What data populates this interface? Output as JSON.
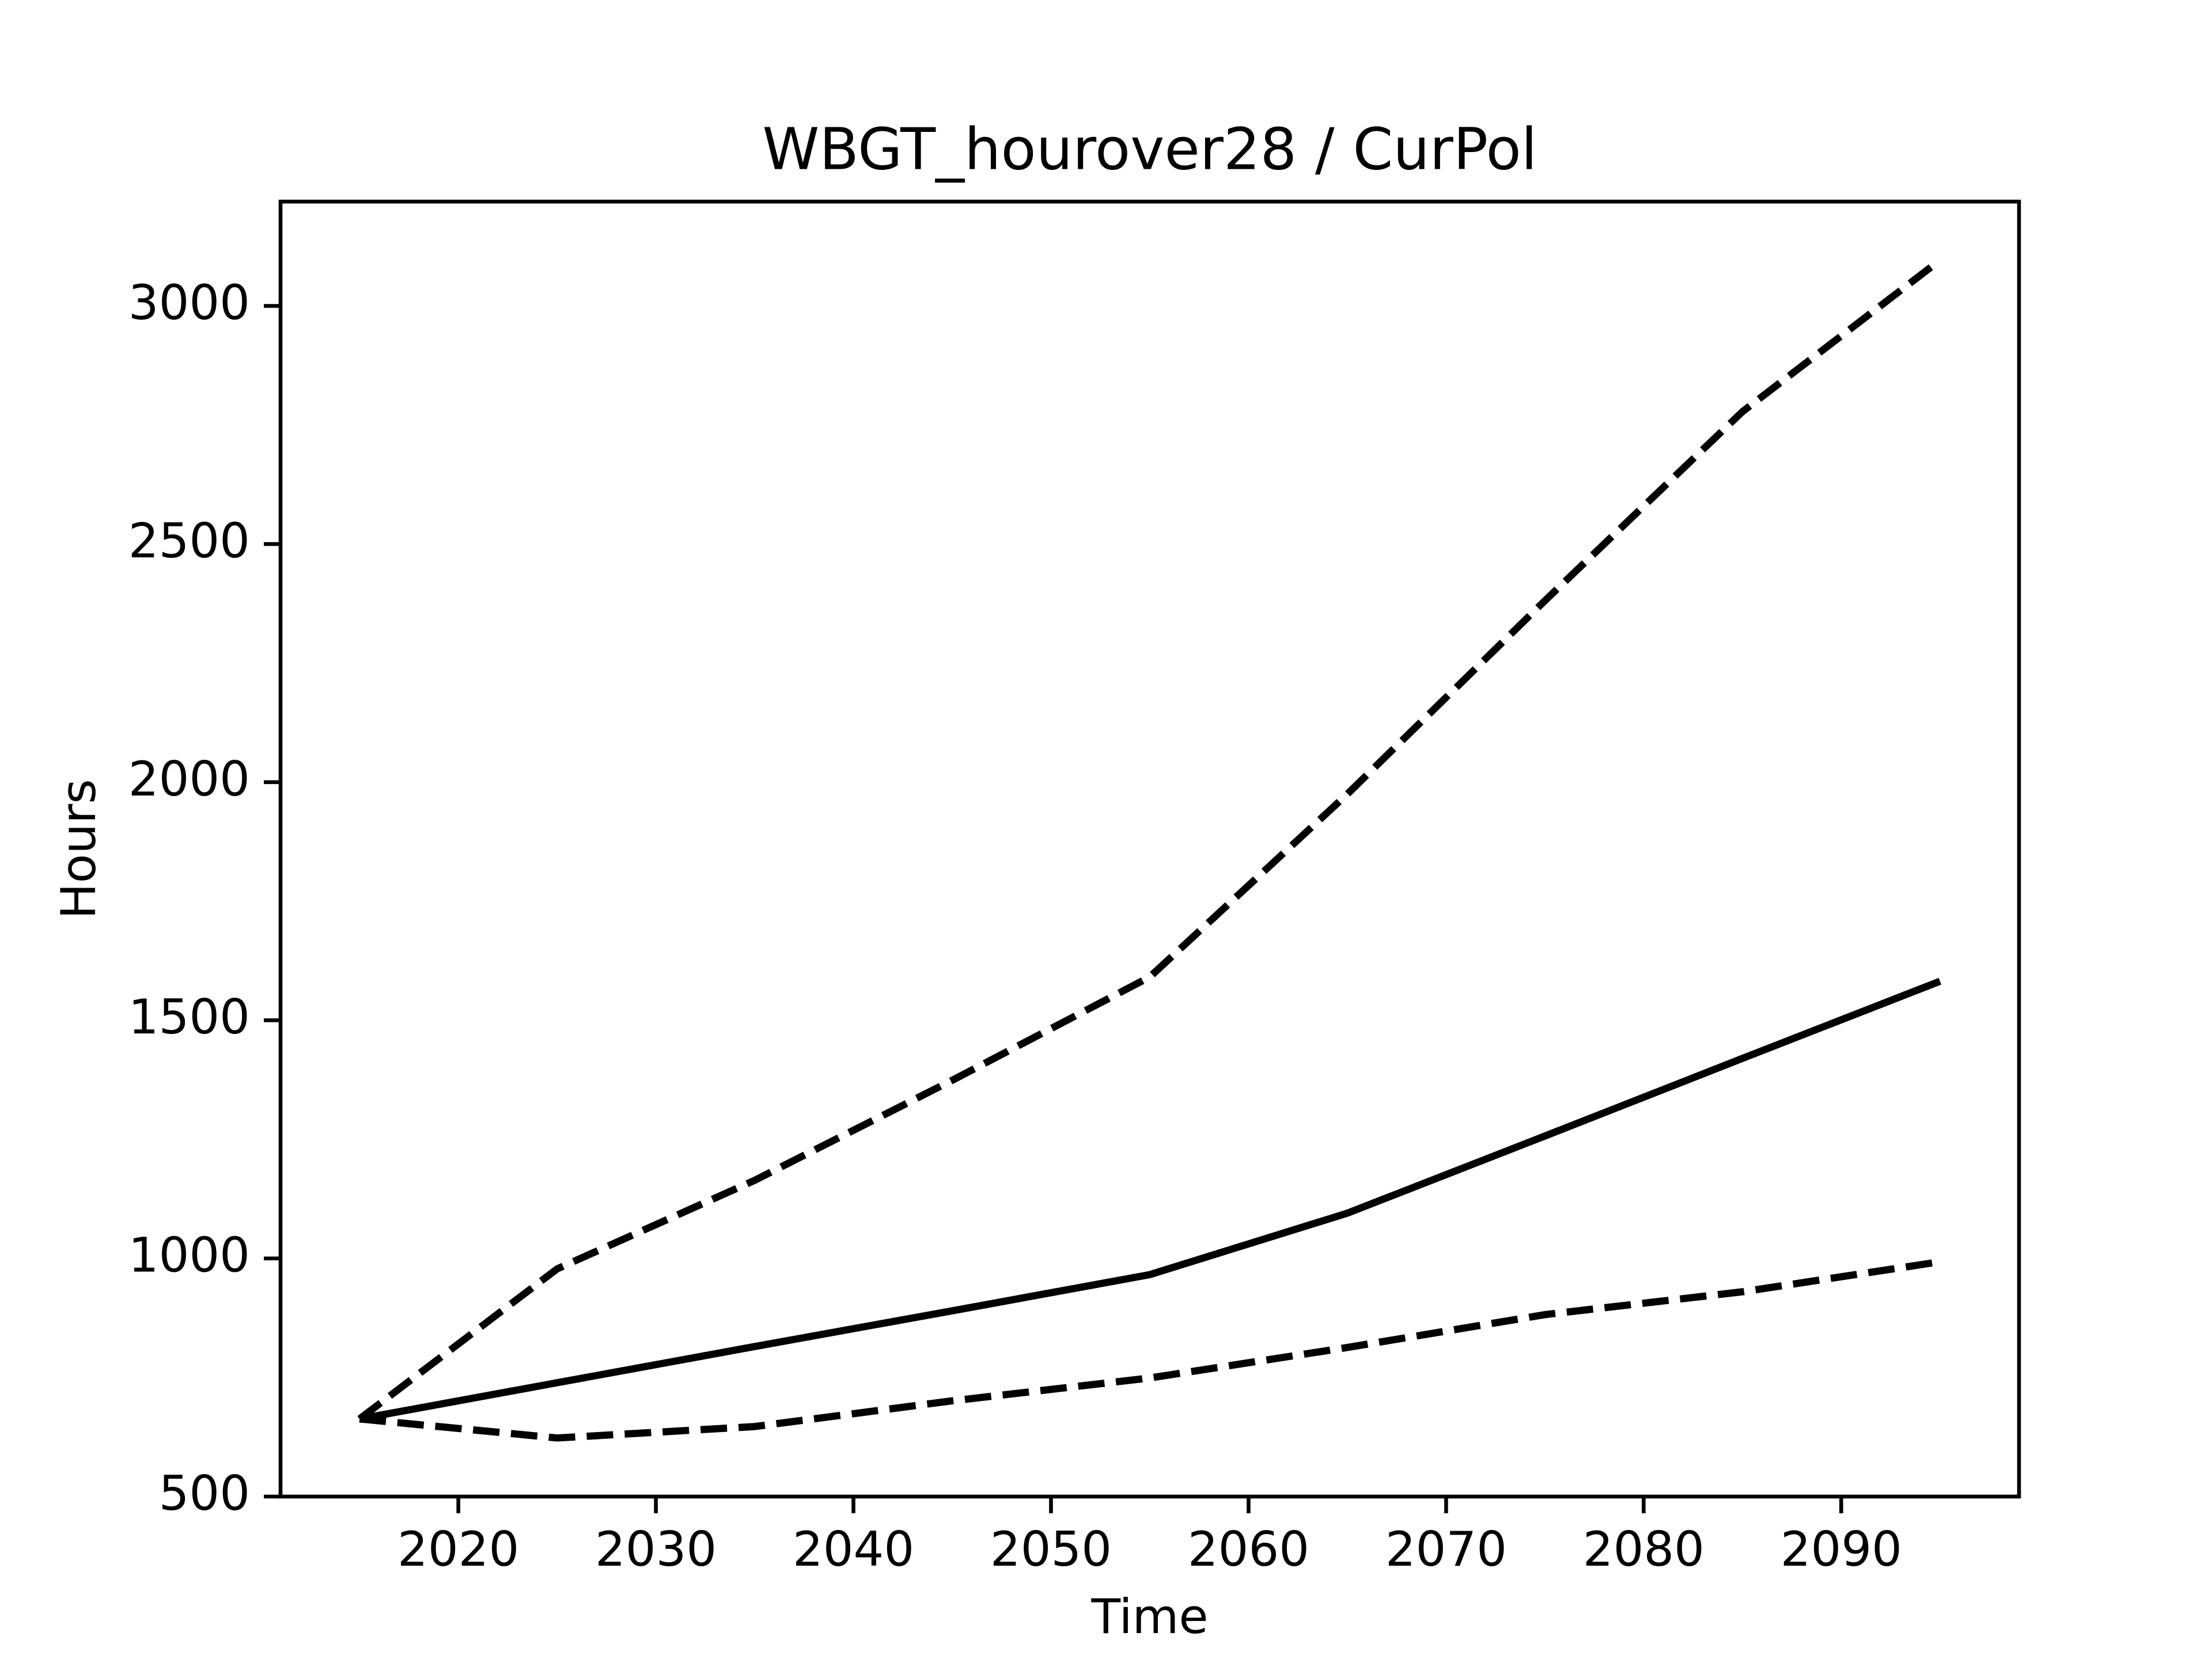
{
  "chart_data": {
    "type": "line",
    "title": "WBGT_hourover28 / CurPol",
    "xlabel": "Time",
    "ylabel": "Hours",
    "x": [
      2015,
      2025,
      2035,
      2045,
      2055,
      2065,
      2075,
      2085,
      2095
    ],
    "series": [
      {
        "color": "#000000",
        "linestyle": "dashed",
        "values": [
          663,
          978,
          1164,
          1374,
          1591,
          1975,
          2381,
          2778,
          3096
        ]
      },
      {
        "color": "#000000",
        "linestyle": "solid",
        "values": [
          663,
          739,
          815,
          890,
          966,
          1095,
          1257,
          1420,
          1582
        ]
      },
      {
        "color": "#000000",
        "linestyle": "dashed",
        "values": [
          663,
          623,
          647,
          701,
          749,
          813,
          882,
          930,
          993
        ]
      }
    ],
    "xlim": [
      2011,
      2099
    ],
    "xticks": [
      2020,
      2030,
      2040,
      2050,
      2060,
      2070,
      2080,
      2090
    ],
    "ylim": [
      500,
      3219
    ],
    "yticks": [
      500,
      1000,
      1500,
      2000,
      2500,
      3000
    ],
    "grid": false
  }
}
